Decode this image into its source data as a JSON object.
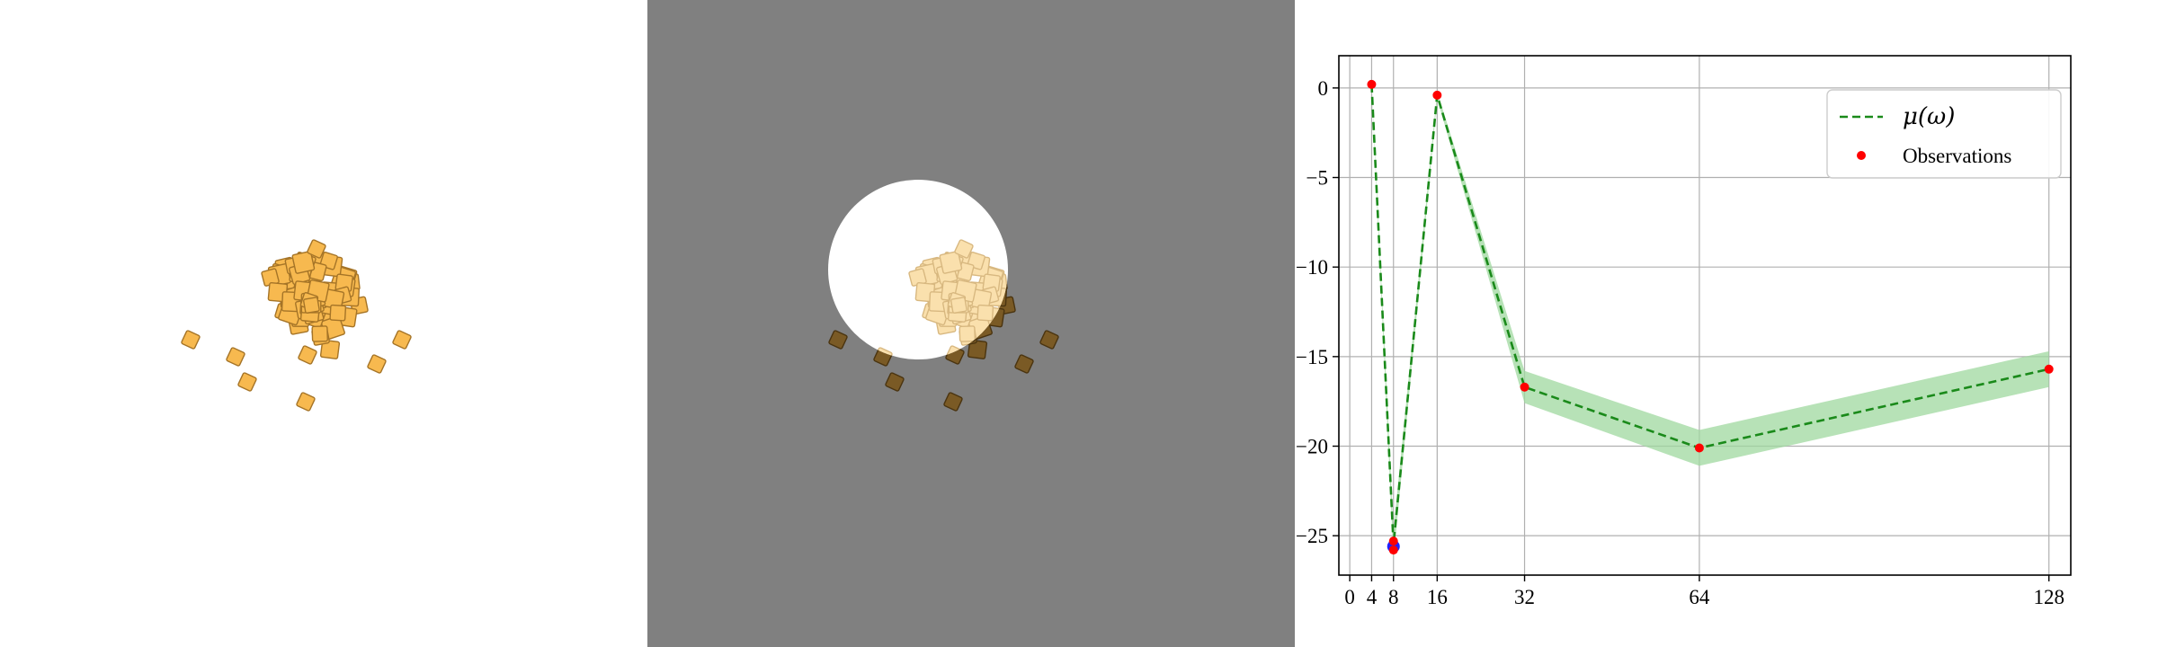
{
  "colors": {
    "mean_line": "#1a8a1a",
    "confidence_band": "#9fd89f",
    "observation": "#ff0000",
    "highlight": "#2020ff",
    "cube_fill": "#f7b94f",
    "cube_edge": "#a57427",
    "mid_background": "#808080"
  },
  "chart_data": {
    "type": "line",
    "title": "",
    "xlabel": "",
    "ylabel": "",
    "xlim": [
      -2,
      132
    ],
    "ylim": [
      -27.2,
      1.8
    ],
    "xticks": [
      0,
      4,
      8,
      16,
      32,
      64,
      128
    ],
    "yticks": [
      0,
      -5,
      -10,
      -15,
      -20,
      -25
    ],
    "ytick_labels": [
      "0",
      "−5",
      "−10",
      "−15",
      "−20",
      "−25"
    ],
    "grid": true,
    "legend_position": "top-right",
    "legend": [
      {
        "label": "μ(ω)",
        "kind": "dashed-line"
      },
      {
        "label": "Observations",
        "kind": "marker"
      }
    ],
    "mean_series": {
      "name": "μ(ω)",
      "x": [
        4,
        8,
        16,
        32,
        64,
        128
      ],
      "y": [
        0.2,
        -25.5,
        -0.4,
        -16.7,
        -20.1,
        -15.7
      ],
      "band_halfwidth": [
        0.05,
        0.4,
        0.1,
        0.45,
        0.5,
        0.5
      ]
    },
    "observations": {
      "name": "Observations",
      "x": [
        4,
        8,
        8,
        16,
        32,
        64,
        128
      ],
      "y": [
        0.2,
        -25.3,
        -25.8,
        -0.4,
        -16.7,
        -20.1,
        -15.7
      ]
    },
    "highlighted_points": {
      "x": [
        8
      ],
      "y": [
        -25.6
      ]
    }
  }
}
